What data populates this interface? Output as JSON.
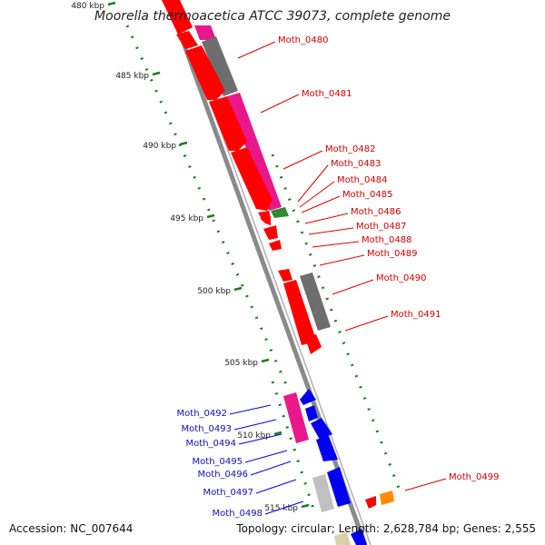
{
  "title": "Moorella thermoacetica ATCC 39073, complete genome",
  "footer": {
    "accession": "Accession: NC_007644",
    "summary": "Topology: circular; Length: 2,628,784 bp; Genes: 2,555"
  },
  "colors": {
    "backbone": "#8a8a8a",
    "forward_red": "#ff0000",
    "magenta": "#e8188a",
    "gray": "#6e6e6e",
    "blue": "#0000ee",
    "orange": "#ff8c00",
    "green_tick": "#1f7a1f",
    "light_gray": "#c0c0c0"
  },
  "scale": {
    "unit": "kbp",
    "ticks": [
      "480 kbp",
      "485 kbp",
      "490 kbp",
      "495 kbp",
      "500 kbp",
      "505 kbp",
      "510 kbp",
      "515 kbp"
    ]
  },
  "genes": [
    {
      "id": "Moth_0480",
      "color": "red"
    },
    {
      "id": "Moth_0481",
      "color": "red"
    },
    {
      "id": "Moth_0482",
      "color": "red"
    },
    {
      "id": "Moth_0483",
      "color": "red"
    },
    {
      "id": "Moth_0484",
      "color": "red"
    },
    {
      "id": "Moth_0485",
      "color": "red"
    },
    {
      "id": "Moth_0486",
      "color": "red"
    },
    {
      "id": "Moth_0487",
      "color": "red"
    },
    {
      "id": "Moth_0488",
      "color": "red"
    },
    {
      "id": "Moth_0489",
      "color": "red"
    },
    {
      "id": "Moth_0490",
      "color": "red"
    },
    {
      "id": "Moth_0491",
      "color": "red"
    },
    {
      "id": "Moth_0492",
      "color": "blue"
    },
    {
      "id": "Moth_0493",
      "color": "blue"
    },
    {
      "id": "Moth_0494",
      "color": "blue"
    },
    {
      "id": "Moth_0495",
      "color": "blue"
    },
    {
      "id": "Moth_0496",
      "color": "blue"
    },
    {
      "id": "Moth_0497",
      "color": "blue"
    },
    {
      "id": "Moth_0498",
      "color": "blue"
    },
    {
      "id": "Moth_0499",
      "color": "red"
    }
  ]
}
